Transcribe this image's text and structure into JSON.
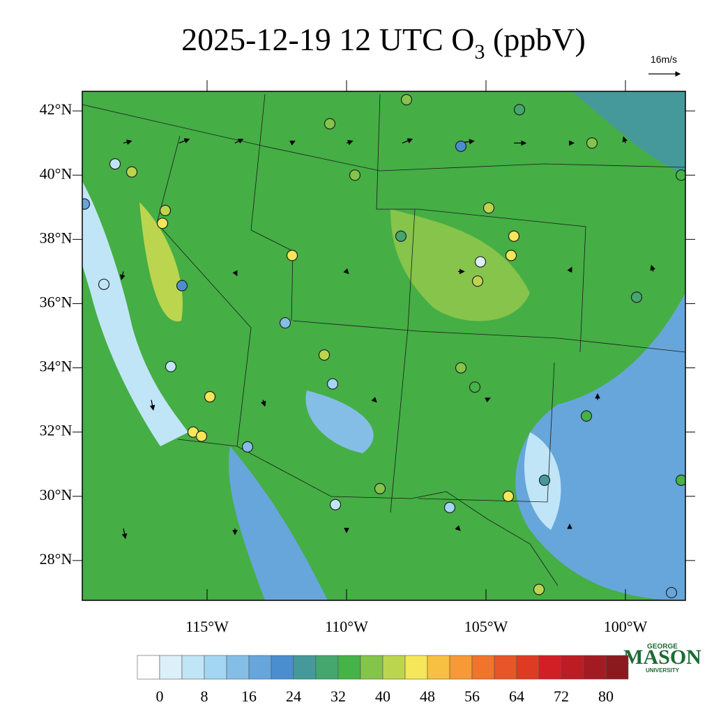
{
  "chart_data": {
    "type": "station-map",
    "title": "2025-12-19 12 UTC O",
    "title_sub": "3",
    "title_end": " (ppbV)",
    "lonlim": [
      -119.475,
      -97.85
    ],
    "latlim": [
      26.76,
      42.61
    ],
    "xticks": [
      {
        "value": -115,
        "label": "115°W"
      },
      {
        "value": -110,
        "label": "110°W"
      },
      {
        "value": -105,
        "label": "105°W"
      },
      {
        "value": -100,
        "label": "100°W"
      }
    ],
    "yticks": [
      {
        "value": 42,
        "label": "42°N"
      },
      {
        "value": 40,
        "label": "40°N"
      },
      {
        "value": 38,
        "label": "38°N"
      },
      {
        "value": 36,
        "label": "36°N"
      },
      {
        "value": 34,
        "label": "34°N"
      },
      {
        "value": 32,
        "label": "32°N"
      },
      {
        "value": 30,
        "label": "30°N"
      },
      {
        "value": 28,
        "label": "28°N"
      }
    ],
    "wind_ref": {
      "value": 16,
      "label": "16m/s"
    },
    "wind": {
      "lon": [
        -118,
        -116,
        -114,
        -112,
        -110,
        -108,
        -106,
        -104,
        -102,
        -100,
        -118,
        -114,
        -110,
        -106,
        -102,
        -99,
        -117,
        -113,
        -109,
        -105,
        -101,
        -118,
        -114,
        -110,
        -106,
        -102
      ],
      "lat": [
        41,
        41,
        41,
        41,
        41,
        41,
        41,
        41,
        41,
        41,
        37,
        37,
        37,
        37,
        37,
        37,
        33,
        33,
        33,
        33,
        33,
        29,
        29,
        29,
        29,
        29
      ],
      "u": [
        4,
        5,
        4,
        2,
        3,
        5,
        8,
        6,
        2,
        -1,
        -1,
        1,
        1,
        3,
        1,
        -1,
        1,
        1,
        1,
        2,
        0,
        1,
        0,
        0,
        1,
        0
      ],
      "v": [
        1,
        2,
        2,
        1,
        1,
        2,
        1,
        0,
        0,
        3,
        -4,
        -2,
        -1,
        0,
        2,
        3,
        -5,
        -3,
        -1,
        1,
        3,
        -5,
        -3,
        -2,
        -1,
        2
      ]
    },
    "stations": {
      "lon": [
        -110.6,
        -107.85,
        -103.8,
        -105.9,
        -101.2,
        -98.0,
        -117.7,
        -118.3,
        -116.5,
        -116.6,
        -111.95,
        -109.7,
        -108.05,
        -104.9,
        -104.0,
        -104.1,
        -105.2,
        -105.3,
        -99.6,
        -118.7,
        -116.3,
        -114.9,
        -115.5,
        -115.2,
        -112.2,
        -110.8,
        -110.5,
        -110.4,
        -105.9,
        -105.4,
        -101.4,
        -102.9,
        -104.2,
        -106.3,
        -103.1,
        -98.35,
        -98.0,
        -119.4,
        -115.9,
        -113.55,
        -108.8
      ],
      "lat": [
        41.6,
        42.35,
        42.04,
        40.9,
        41.0,
        40.0,
        40.1,
        40.35,
        38.9,
        38.5,
        37.5,
        40.0,
        38.1,
        38.98,
        38.1,
        37.5,
        37.3,
        36.7,
        36.2,
        36.6,
        34.04,
        33.1,
        32.0,
        31.87,
        35.4,
        34.4,
        33.5,
        29.74,
        34.0,
        33.4,
        32.5,
        30.5,
        30.0,
        29.65,
        27.1,
        27.0,
        30.5,
        39.1,
        36.56,
        31.54,
        30.24
      ],
      "values": [
        36,
        36,
        28,
        22,
        36,
        34,
        40,
        6,
        42,
        46,
        46,
        36,
        28,
        42,
        44,
        46,
        2,
        42,
        30,
        6,
        6,
        46,
        46,
        45,
        14,
        42,
        10,
        4,
        36,
        32,
        34,
        24,
        46,
        10,
        40,
        16,
        32,
        18,
        20,
        14,
        38
      ]
    },
    "colorbar": {
      "levels": [
        0,
        4,
        8,
        12,
        16,
        20,
        24,
        28,
        32,
        36,
        40,
        44,
        48,
        52,
        56,
        60,
        64,
        68,
        72,
        76,
        80
      ],
      "colors": [
        "#ffffff",
        "#dcf0fa",
        "#c0e5f7",
        "#a2d6f2",
        "#84bee6",
        "#66a6db",
        "#4a8ecf",
        "#46999a",
        "#45a66e",
        "#45b347",
        "#84c44b",
        "#bcd54f",
        "#f5e65a",
        "#f8c043",
        "#f79a35",
        "#f0742c",
        "#e85528",
        "#df3a24",
        "#d21f25",
        "#bc1c24",
        "#a31a23",
        "#8b1a1e"
      ],
      "ticks": [
        0,
        8,
        16,
        24,
        32,
        40,
        48,
        56,
        64,
        72,
        80
      ]
    },
    "logo": {
      "top": "GEORGE",
      "main": "MASON",
      "bottom": "UNIVERSITY"
    }
  }
}
